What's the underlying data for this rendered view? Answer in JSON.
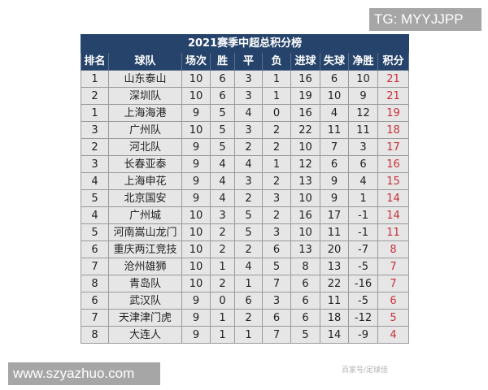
{
  "title": "2021赛季中超总积分榜",
  "headers": [
    "排名",
    "球队",
    "场次",
    "胜",
    "平",
    "负",
    "进球",
    "失球",
    "净胜",
    "积分"
  ],
  "rows": [
    [
      "1",
      "山东泰山",
      "10",
      "6",
      "3",
      "1",
      "16",
      "6",
      "10",
      "21"
    ],
    [
      "2",
      "深圳队",
      "10",
      "6",
      "3",
      "1",
      "19",
      "10",
      "9",
      "21"
    ],
    [
      "1",
      "上海海港",
      "9",
      "5",
      "4",
      "0",
      "16",
      "4",
      "12",
      "19"
    ],
    [
      "3",
      "广州队",
      "10",
      "5",
      "3",
      "2",
      "22",
      "11",
      "11",
      "18"
    ],
    [
      "2",
      "河北队",
      "9",
      "5",
      "2",
      "2",
      "10",
      "7",
      "3",
      "17"
    ],
    [
      "3",
      "长春亚泰",
      "9",
      "4",
      "4",
      "1",
      "12",
      "6",
      "6",
      "16"
    ],
    [
      "4",
      "上海申花",
      "9",
      "4",
      "3",
      "2",
      "13",
      "9",
      "4",
      "15"
    ],
    [
      "5",
      "北京国安",
      "9",
      "4",
      "2",
      "3",
      "10",
      "9",
      "1",
      "14"
    ],
    [
      "4",
      "广州城",
      "10",
      "3",
      "5",
      "2",
      "16",
      "17",
      "-1",
      "14"
    ],
    [
      "5",
      "河南嵩山龙门",
      "10",
      "2",
      "5",
      "3",
      "10",
      "11",
      "-1",
      "11"
    ],
    [
      "6",
      "重庆两江竞技",
      "10",
      "2",
      "2",
      "6",
      "13",
      "20",
      "-7",
      "8"
    ],
    [
      "7",
      "沧州雄狮",
      "10",
      "1",
      "4",
      "5",
      "8",
      "13",
      "-5",
      "7"
    ],
    [
      "8",
      "青岛队",
      "10",
      "2",
      "1",
      "7",
      "6",
      "22",
      "-16",
      "7"
    ],
    [
      "6",
      "武汉队",
      "9",
      "0",
      "6",
      "3",
      "6",
      "11",
      "-5",
      "6"
    ],
    [
      "7",
      "天津津门虎",
      "9",
      "1",
      "2",
      "6",
      "6",
      "18",
      "-12",
      "5"
    ],
    [
      "8",
      "大连人",
      "9",
      "1",
      "1",
      "7",
      "5",
      "14",
      "-9",
      "4"
    ]
  ],
  "overlays": {
    "top_right": "TG: MYYJJPP",
    "bottom_left": "www.szyazhuo.com",
    "watermark": "百家号/足球佳"
  },
  "colors": {
    "header_bg": "#26446b",
    "points_text": "#c8303a",
    "row_bg": "#e6e6e6"
  }
}
